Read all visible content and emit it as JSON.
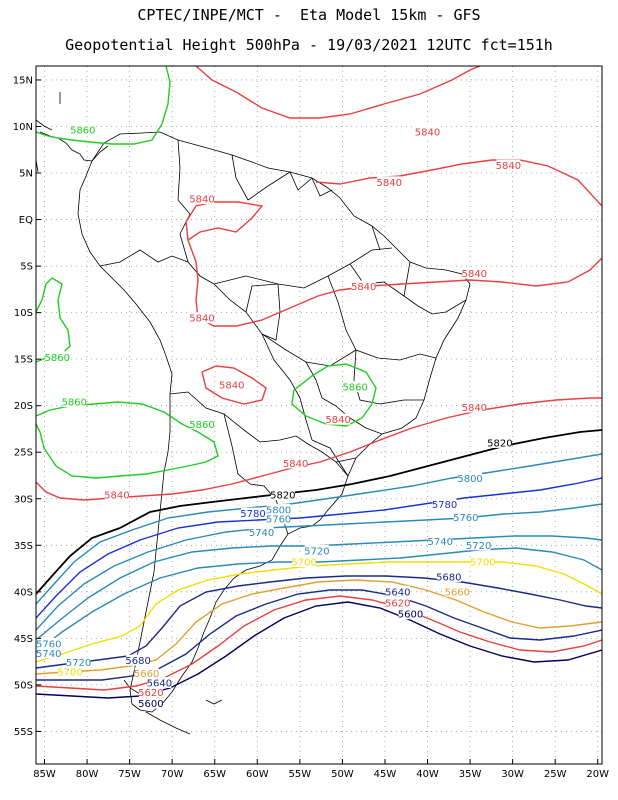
{
  "header": {
    "title_line1": "CPTEC/INPE/MCT -  Eta Model 15km - GFS",
    "title_line2": "Geopotential Height 500hPa - 19/03/2021 12UTC fct=151h"
  },
  "axes": {
    "lat_labels": [
      "15N",
      "10N",
      "5N",
      "EQ",
      "5S",
      "10S",
      "15S",
      "20S",
      "25S",
      "30S",
      "35S",
      "40S",
      "45S",
      "50S",
      "55S"
    ],
    "lon_labels": [
      "85W",
      "80W",
      "75W",
      "70W",
      "65W",
      "60W",
      "55W",
      "50W",
      "45W",
      "40W",
      "35W",
      "30W",
      "25W",
      "20W"
    ]
  },
  "contours": [
    {
      "level": "5860",
      "color": "#22cc22",
      "labels": [
        {
          "text": "5860",
          "lon": -80.5,
          "lat": 9.6
        },
        {
          "text": "5860",
          "lon": -83.5,
          "lat": -14.8
        },
        {
          "text": "5860",
          "lon": -81.5,
          "lat": -19.6
        },
        {
          "text": "5860",
          "lon": -66.5,
          "lat": -22.0
        },
        {
          "text": "5860",
          "lon": -48.5,
          "lat": -18.0
        }
      ]
    },
    {
      "level": "5840",
      "color": "#e84040",
      "labels": [
        {
          "text": "5840",
          "lon": -50.5,
          "lat": -21.5
        },
        {
          "text": "5840",
          "lon": -40.0,
          "lat": 9.4
        },
        {
          "text": "5840",
          "lon": -30.5,
          "lat": 5.8
        },
        {
          "text": "5840",
          "lon": -44.5,
          "lat": 4.0
        },
        {
          "text": "5840",
          "lon": -66.5,
          "lat": 2.2
        },
        {
          "text": "5840",
          "lon": -34.5,
          "lat": -5.8
        },
        {
          "text": "5840",
          "lon": -47.5,
          "lat": -7.2
        },
        {
          "text": "5840",
          "lon": -66.5,
          "lat": -10.6
        },
        {
          "text": "5840",
          "lon": -63.0,
          "lat": -17.8
        },
        {
          "text": "5840",
          "lon": -34.5,
          "lat": -20.2
        },
        {
          "text": "5840",
          "lon": -55.5,
          "lat": -26.2
        },
        {
          "text": "5840",
          "lon": -76.5,
          "lat": -29.6
        }
      ]
    },
    {
      "level": "5820",
      "color": "#000000",
      "labels": [
        {
          "text": "5820",
          "lon": -31.5,
          "lat": -24.0
        },
        {
          "text": "5820",
          "lon": -57.0,
          "lat": -29.6
        }
      ]
    },
    {
      "level": "5800",
      "color": "#2a8ab8",
      "labels": [
        {
          "text": "5800",
          "lon": -35.0,
          "lat": -27.8
        },
        {
          "text": "5800",
          "lon": -57.5,
          "lat": -31.2
        }
      ]
    },
    {
      "level": "5780",
      "color": "#1a30d8",
      "labels": [
        {
          "text": "5780",
          "lon": -60.5,
          "lat": -31.6
        },
        {
          "text": "5780",
          "lon": -38.0,
          "lat": -30.6
        }
      ]
    },
    {
      "level": "5760",
      "color": "#2a8ab8",
      "labels": [
        {
          "text": "5760",
          "lon": -57.5,
          "lat": -32.2
        },
        {
          "text": "5760",
          "lon": -35.5,
          "lat": -32.0
        },
        {
          "text": "5760",
          "lon": -84.5,
          "lat": -45.6
        }
      ]
    },
    {
      "level": "5740",
      "color": "#2a8ab8",
      "labels": [
        {
          "text": "5740",
          "lon": -59.5,
          "lat": -33.6
        },
        {
          "text": "5740",
          "lon": -38.5,
          "lat": -34.6
        },
        {
          "text": "5740",
          "lon": -84.5,
          "lat": -46.6
        }
      ]
    },
    {
      "level": "5720",
      "color": "#2a8ab8",
      "labels": [
        {
          "text": "5720",
          "lon": -53.0,
          "lat": -35.6
        },
        {
          "text": "5720",
          "lon": -34.0,
          "lat": -35.0
        },
        {
          "text": "5720",
          "lon": -81.0,
          "lat": -47.6
        }
      ]
    },
    {
      "level": "5700",
      "color": "#f0e000",
      "labels": [
        {
          "text": "5700",
          "lon": -54.5,
          "lat": -36.8
        },
        {
          "text": "5700",
          "lon": -33.5,
          "lat": -36.8
        },
        {
          "text": "5700",
          "lon": -82.0,
          "lat": -48.6
        }
      ]
    },
    {
      "level": "5680",
      "color": "#1a2a8a",
      "labels": [
        {
          "text": "5680",
          "lon": -37.5,
          "lat": -38.4
        },
        {
          "text": "5680",
          "lon": -74.0,
          "lat": -47.4
        }
      ]
    },
    {
      "level": "5660",
      "color": "#e0a030",
      "labels": [
        {
          "text": "5660",
          "lon": -36.5,
          "lat": -40.0
        },
        {
          "text": "5660",
          "lon": -73.0,
          "lat": -48.8
        }
      ]
    },
    {
      "level": "5640",
      "color": "#1a2a8a",
      "labels": [
        {
          "text": "5640",
          "lon": -43.5,
          "lat": -40.0
        },
        {
          "text": "5640",
          "lon": -71.5,
          "lat": -49.8
        }
      ]
    },
    {
      "level": "5620",
      "color": "#e84040",
      "labels": [
        {
          "text": "5620",
          "lon": -43.5,
          "lat": -41.2
        },
        {
          "text": "5620",
          "lon": -72.5,
          "lat": -50.8
        }
      ]
    },
    {
      "level": "5600",
      "color": "#000060",
      "labels": [
        {
          "text": "5600",
          "lon": -42.0,
          "lat": -42.4
        },
        {
          "text": "5600",
          "lon": -72.5,
          "lat": -52.0
        }
      ]
    }
  ]
}
